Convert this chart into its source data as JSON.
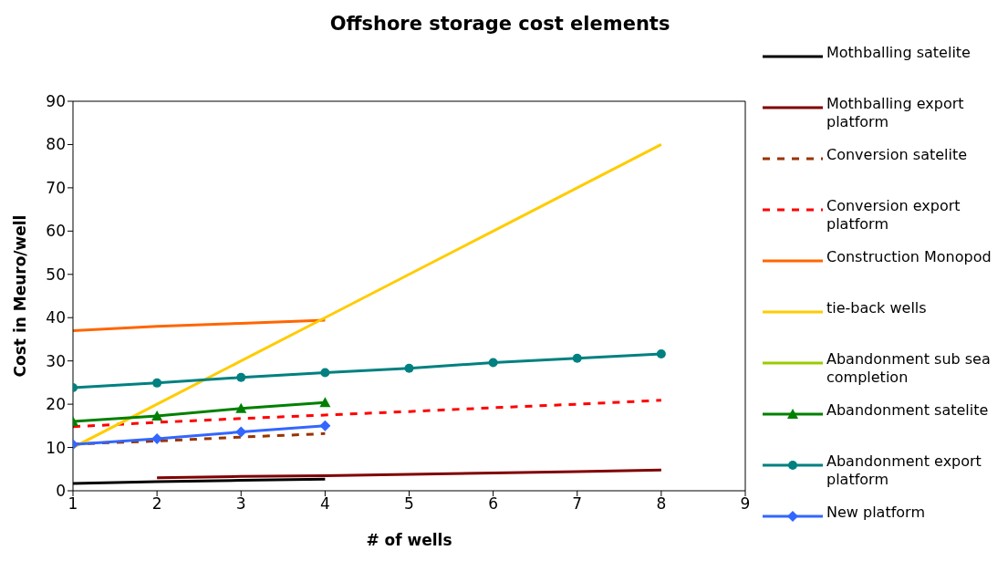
{
  "chart_data": {
    "type": "line",
    "title": "Offshore storage cost elements",
    "xlabel": "# of wells",
    "ylabel": "Cost in Meuro/well",
    "xlim": [
      1,
      9
    ],
    "xticks": [
      1,
      2,
      3,
      4,
      5,
      6,
      7,
      8,
      9
    ],
    "ylim": [
      0,
      90
    ],
    "yticks": [
      0,
      10,
      20,
      30,
      40,
      50,
      60,
      70,
      80,
      90
    ],
    "grid": false,
    "legend": "right",
    "marker": "none",
    "line_style": "solid",
    "series": [
      {
        "name": "Mothballing satelite",
        "color": "#000000",
        "x": [
          1,
          2,
          3,
          4
        ],
        "values": [
          1.7,
          2.1,
          2.4,
          2.7
        ]
      },
      {
        "name": "Mothballing export platform",
        "color": "#800000",
        "x": [
          2,
          3,
          4,
          5,
          6,
          7,
          8
        ],
        "values": [
          3.0,
          3.3,
          3.5,
          3.8,
          4.1,
          4.4,
          4.8
        ]
      },
      {
        "name": "Conversion satelite",
        "color": "#993300",
        "line_style": "dashed",
        "x": [
          1,
          2,
          3,
          4
        ],
        "values": [
          10.8,
          11.5,
          12.4,
          13.2
        ]
      },
      {
        "name": "Conversion export platform",
        "color": "#ff0000",
        "line_style": "dashed",
        "x": [
          1,
          2,
          3,
          4,
          5,
          6,
          7,
          8
        ],
        "values": [
          14.8,
          15.8,
          16.7,
          17.5,
          18.3,
          19.2,
          20.0,
          20.9
        ]
      },
      {
        "name": "Construction Monopod",
        "color": "#ff6600",
        "x": [
          1,
          2,
          3,
          4
        ],
        "values": [
          37,
          38,
          38.7,
          39.4
        ]
      },
      {
        "name": "tie-back wells",
        "color": "#ffcc00",
        "x": [
          1,
          2,
          3,
          4,
          5,
          6,
          7,
          8
        ],
        "values": [
          10,
          20,
          30,
          40,
          50,
          60,
          70,
          80
        ]
      },
      {
        "name": "Abandonment sub sea completion",
        "color": "#99cc00"
      },
      {
        "name": "Abandonment satelite",
        "color": "#008000",
        "marker": "triangle",
        "x": [
          1,
          2,
          3,
          4
        ],
        "values": [
          16,
          17.3,
          19,
          20.4
        ]
      },
      {
        "name": "Abandonment export platform",
        "color": "#008080",
        "marker": "circle",
        "x": [
          1,
          2,
          3,
          4,
          5,
          6,
          7,
          8
        ],
        "values": [
          23.8,
          24.9,
          26.2,
          27.3,
          28.3,
          29.6,
          30.6,
          31.6
        ]
      },
      {
        "name": "New platform",
        "color": "#3366ff",
        "marker": "diamond",
        "x": [
          1,
          2,
          3,
          4
        ],
        "values": [
          10.7,
          12.0,
          13.6,
          15.0
        ]
      }
    ]
  }
}
